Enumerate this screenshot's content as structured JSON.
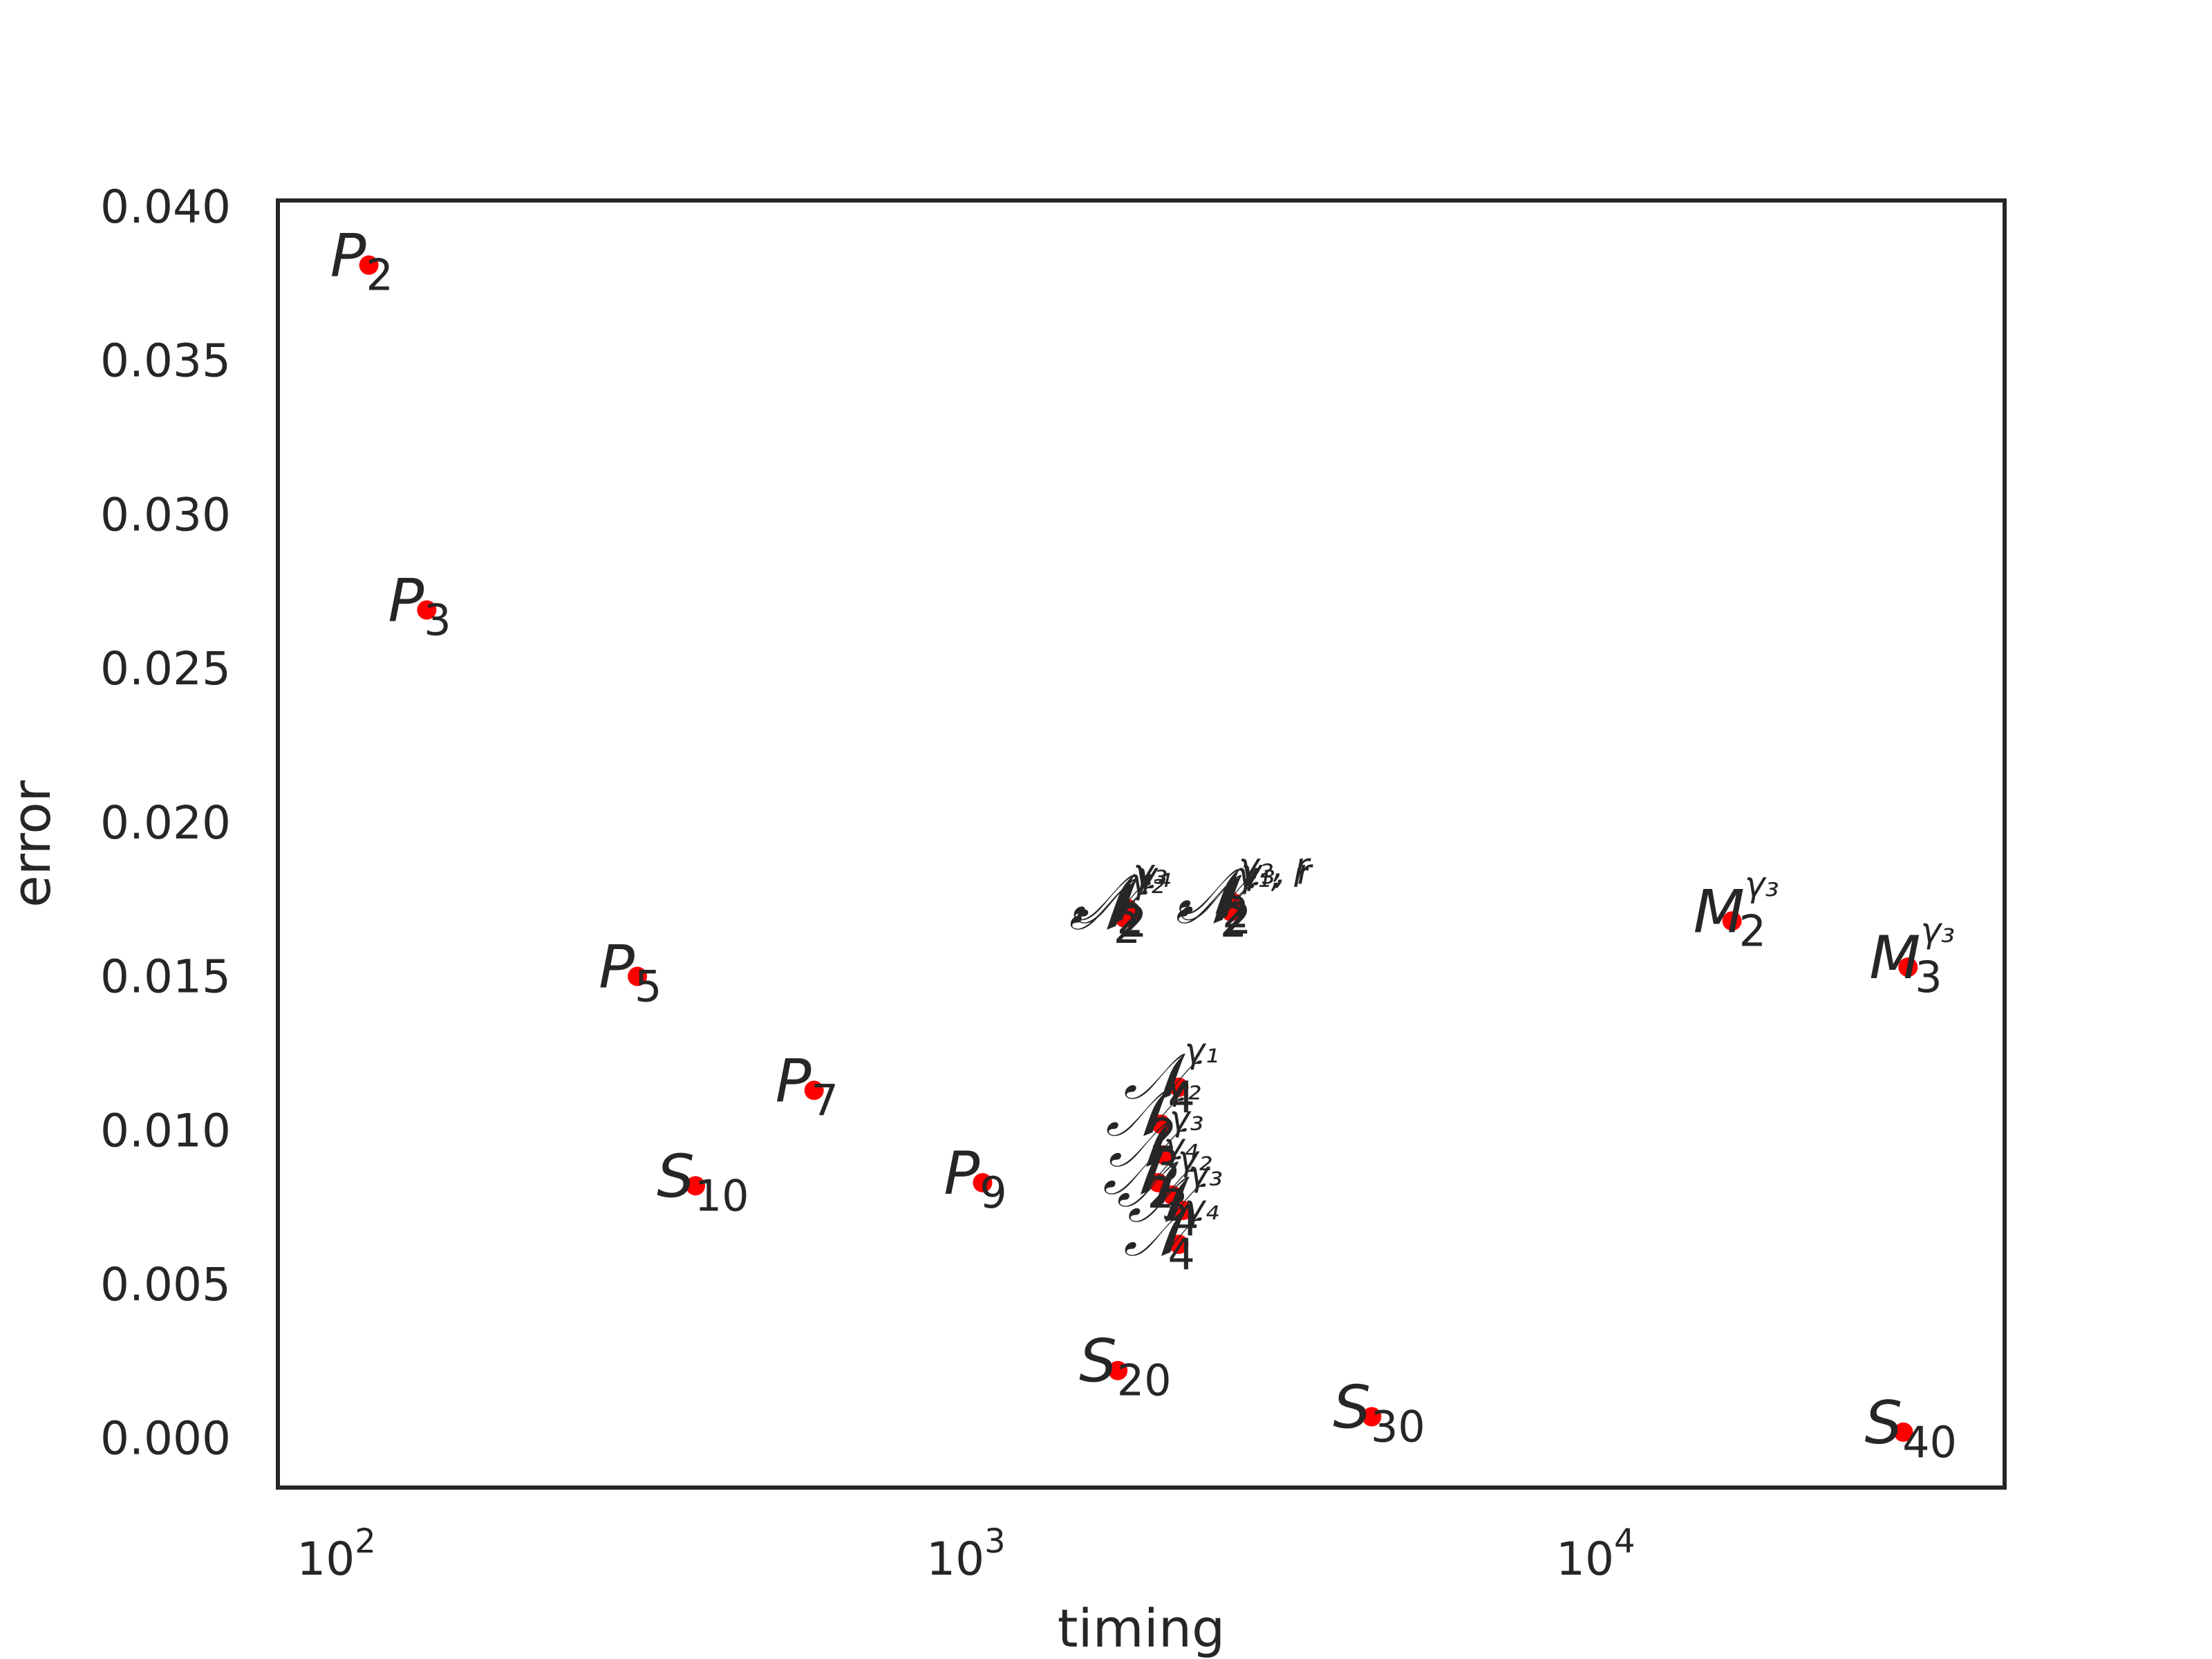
{
  "chart_data": {
    "type": "scatter",
    "xlabel": "timing",
    "ylabel": "error",
    "xscale": "log",
    "xlim": [
      76,
      42000
    ],
    "ylim": [
      -0.0016,
      0.0402
    ],
    "grid": false,
    "marker_color": "#ff0000",
    "x_ticks": [
      {
        "value": 100,
        "base": "10",
        "exp": "2"
      },
      {
        "value": 1000,
        "base": "10",
        "exp": "3"
      },
      {
        "value": 10000,
        "base": "10",
        "exp": "4"
      }
    ],
    "y_ticks": [
      {
        "value": 0.0,
        "label": "0.000"
      },
      {
        "value": 0.005,
        "label": "0.005"
      },
      {
        "value": 0.01,
        "label": "0.010"
      },
      {
        "value": 0.015,
        "label": "0.015"
      },
      {
        "value": 0.02,
        "label": "0.020"
      },
      {
        "value": 0.025,
        "label": "0.025"
      },
      {
        "value": 0.03,
        "label": "0.030"
      },
      {
        "value": 0.035,
        "label": "0.035"
      },
      {
        "value": 0.04,
        "label": "0.040"
      }
    ],
    "points": [
      {
        "x": 106,
        "y": 0.0381,
        "main": "P",
        "sub": "2",
        "sup": ""
      },
      {
        "x": 131,
        "y": 0.0269,
        "main": "P",
        "sub": "3",
        "sup": ""
      },
      {
        "x": 283,
        "y": 0.015,
        "main": "P",
        "sub": "5",
        "sup": ""
      },
      {
        "x": 540,
        "y": 0.0113,
        "main": "P",
        "sub": "7",
        "sup": ""
      },
      {
        "x": 1000,
        "y": 0.0083,
        "main": "P",
        "sub": "9",
        "sup": ""
      },
      {
        "x": 350,
        "y": 0.0082,
        "main": "S",
        "sub": "10",
        "sup": ""
      },
      {
        "x": 1640,
        "y": 0.0022,
        "main": "S",
        "sub": "20",
        "sup": ""
      },
      {
        "x": 4150,
        "y": 0.0007,
        "main": "S",
        "sub": "30",
        "sup": ""
      },
      {
        "x": 29000,
        "y": 0.0002,
        "main": "S",
        "sub": "40",
        "sup": ""
      },
      {
        "x": 15500,
        "y": 0.0168,
        "main": "M",
        "sub": "2",
        "sup": "γ₃"
      },
      {
        "x": 29500,
        "y": 0.0153,
        "main": "M",
        "sub": "3",
        "sup": "γ₃"
      },
      {
        "x": 1680,
        "y": 0.0169,
        "main": "𝒩",
        "sub": "2",
        "sup": "γ₂"
      },
      {
        "x": 1700,
        "y": 0.0172,
        "main": "𝒩",
        "sub": "2",
        "sup": "γ₃"
      },
      {
        "x": 1720,
        "y": 0.0171,
        "main": "𝒩",
        "sub": "2",
        "sup": "γ₄"
      },
      {
        "x": 2480,
        "y": 0.0171,
        "main": "𝒩",
        "sub": "2",
        "sup": "γ₁, r"
      },
      {
        "x": 2500,
        "y": 0.0174,
        "main": "𝒩",
        "sub": "2",
        "sup": "γ₂, r"
      },
      {
        "x": 2520,
        "y": 0.0172,
        "main": "𝒩",
        "sub": "2",
        "sup": "γ₃, r"
      },
      {
        "x": 2050,
        "y": 0.0114,
        "main": "𝒩",
        "sub": "4",
        "sup": "γ₁"
      },
      {
        "x": 1920,
        "y": 0.0102,
        "main": "𝒩",
        "sub": "2",
        "sup": "γ₂"
      },
      {
        "x": 1940,
        "y": 0.0092,
        "main": "𝒩",
        "sub": "3",
        "sup": "γ₃"
      },
      {
        "x": 1900,
        "y": 0.0083,
        "main": "𝒩",
        "sub": "2",
        "sup": "γ₄"
      },
      {
        "x": 2000,
        "y": 0.0079,
        "main": "𝒩",
        "sub": "3",
        "sup": "γ₂"
      },
      {
        "x": 2080,
        "y": 0.0074,
        "main": "𝒩",
        "sub": "4",
        "sup": "γ₃"
      },
      {
        "x": 2050,
        "y": 0.0063,
        "main": "𝒩",
        "sub": "4",
        "sup": "γ₄"
      }
    ]
  }
}
